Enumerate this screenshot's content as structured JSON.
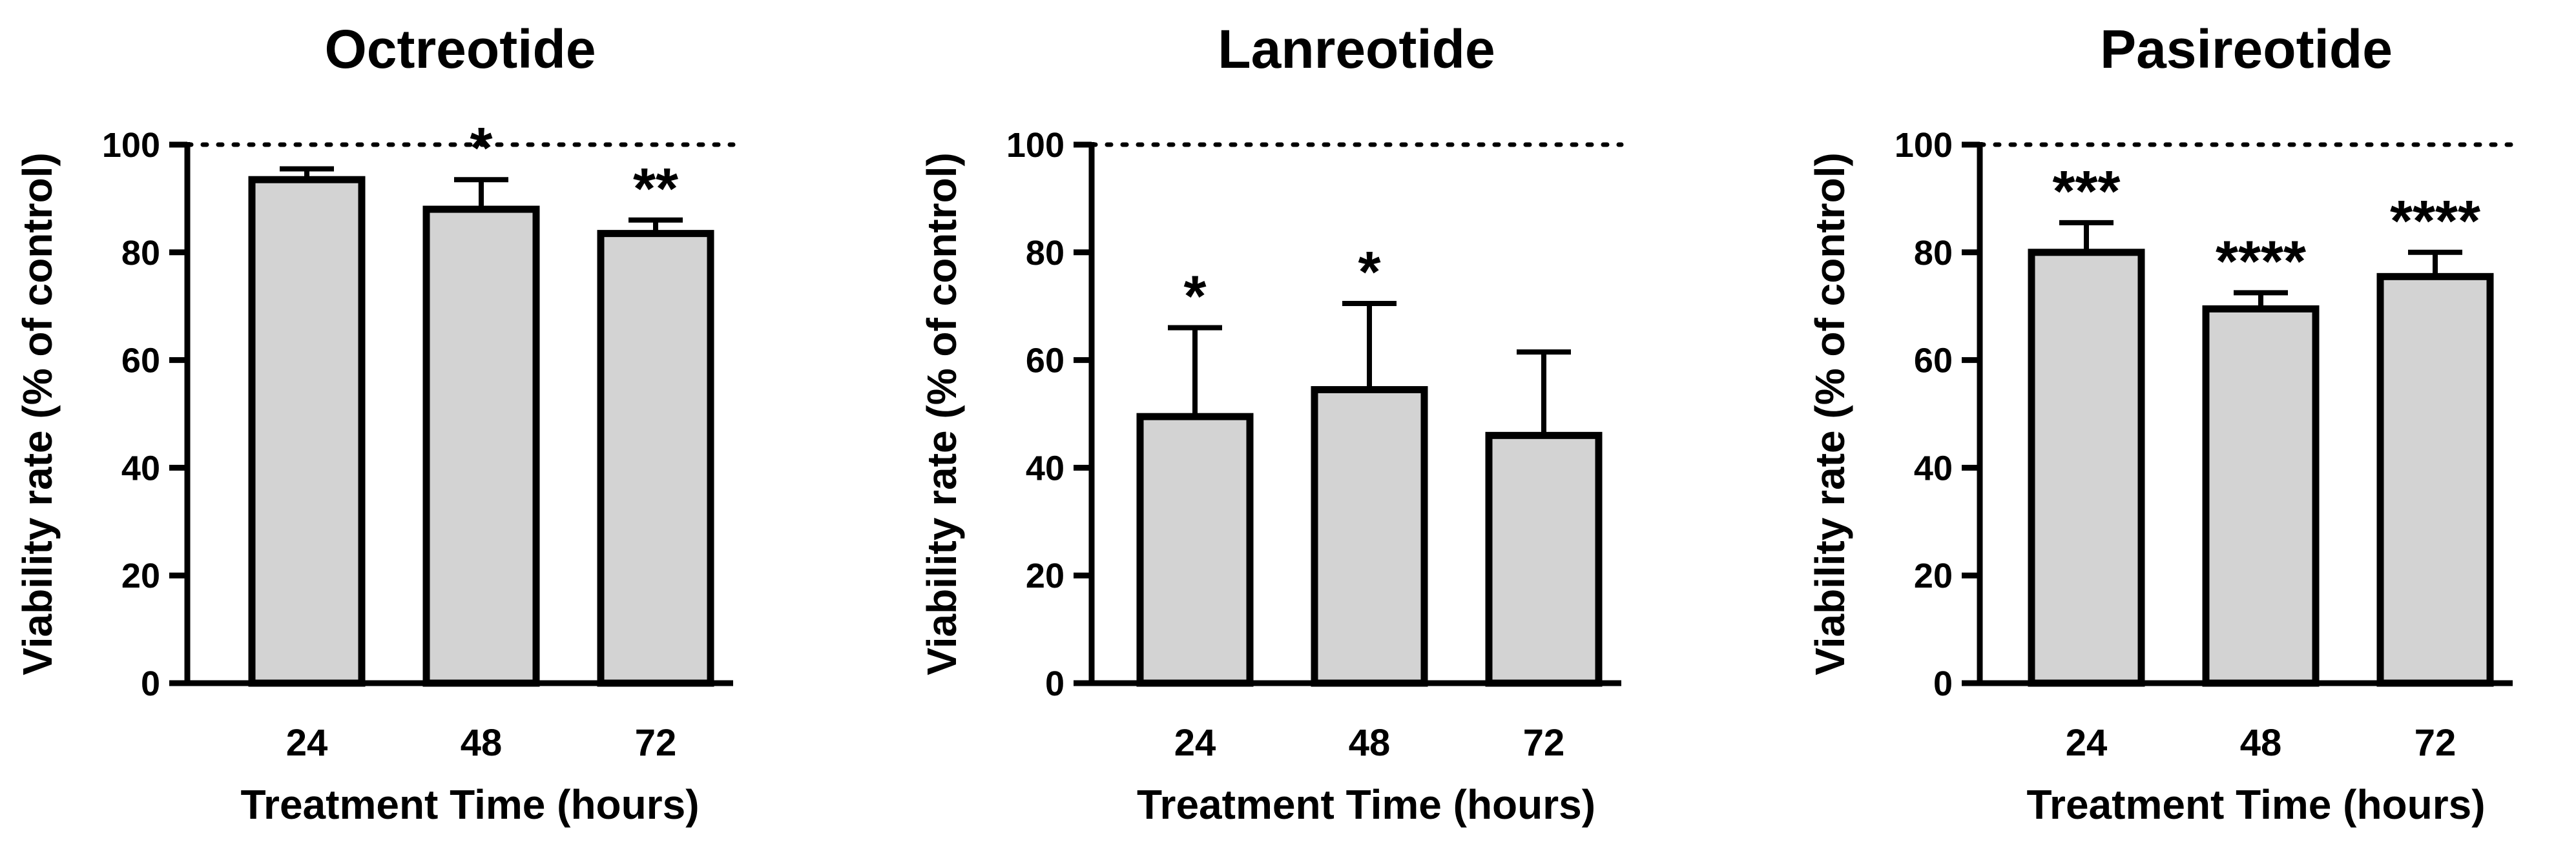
{
  "chart_data": [
    {
      "type": "bar",
      "title": "Octreotide",
      "xlabel": "Treatment Time (hours)",
      "ylabel": "Viability rate (% of control)",
      "categories": [
        "24",
        "48",
        "72"
      ],
      "values": [
        93.5,
        88,
        83.5
      ],
      "errors": [
        2,
        5.5,
        2.5
      ],
      "significance": [
        "",
        "*",
        "**"
      ],
      "ylim": [
        0,
        100
      ],
      "yticks": [
        0,
        20,
        40,
        60,
        80,
        100
      ],
      "reference_line": 100,
      "bar_color": "#d3d3d3"
    },
    {
      "type": "bar",
      "title": "Lanreotide",
      "xlabel": "Treatment Time (hours)",
      "ylabel": "Viability rate (% of control)",
      "categories": [
        "24",
        "48",
        "72"
      ],
      "values": [
        49.5,
        54.5,
        46
      ],
      "errors": [
        16.5,
        16,
        15.5
      ],
      "significance": [
        "*",
        "*",
        ""
      ],
      "ylim": [
        0,
        100
      ],
      "yticks": [
        0,
        20,
        40,
        60,
        80,
        100
      ],
      "reference_line": 100,
      "bar_color": "#d3d3d3"
    },
    {
      "type": "bar",
      "title": "Pasireotide",
      "xlabel": "Treatment Time (hours)",
      "ylabel": "Viability rate (% of control)",
      "categories": [
        "24",
        "48",
        "72"
      ],
      "values": [
        80,
        69.5,
        75.5
      ],
      "errors": [
        5.5,
        3,
        4.5
      ],
      "significance": [
        "***",
        "****",
        "****"
      ],
      "ylim": [
        0,
        100
      ],
      "yticks": [
        0,
        20,
        40,
        60,
        80,
        100
      ],
      "reference_line": 100,
      "bar_color": "#d3d3d3"
    }
  ]
}
